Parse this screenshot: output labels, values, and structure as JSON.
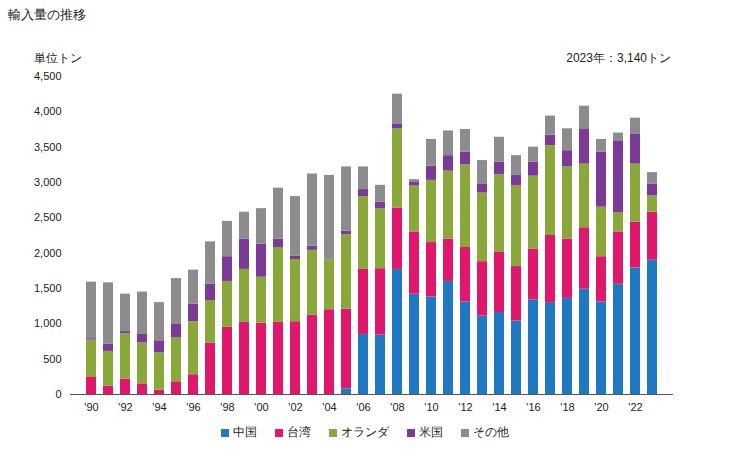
{
  "chart_data": {
    "type": "bar",
    "title": "輸入量の推移",
    "y_label": "単位トン",
    "annotations": [
      "2023年：3,140トン"
    ],
    "stacked": true,
    "grid": false,
    "legend": "bottom",
    "categories": [
      "'90",
      null,
      "'92",
      null,
      "'94",
      null,
      "'96",
      null,
      "'98",
      null,
      "'00",
      null,
      "'02",
      null,
      "'04",
      null,
      "'06",
      null,
      "'08",
      null,
      "'10",
      null,
      "'12",
      null,
      "'14",
      null,
      "'16",
      null,
      "'18",
      null,
      "'20",
      null,
      "'22",
      null
    ],
    "series": [
      {
        "name": "中国",
        "color": "#1f78c1",
        "values": [
          0,
          0,
          0,
          0,
          0,
          0,
          0,
          0,
          0,
          0,
          0,
          0,
          0,
          0,
          0,
          80,
          850,
          840,
          1770,
          1420,
          1380,
          1600,
          1310,
          1110,
          1160,
          1040,
          1340,
          1300,
          1360,
          1490,
          1310,
          1560,
          1790,
          1900
        ]
      },
      {
        "name": "台湾",
        "color": "#e0186c",
        "values": [
          250,
          120,
          220,
          150,
          60,
          180,
          280,
          730,
          950,
          1020,
          1010,
          1020,
          1030,
          1120,
          1200,
          1130,
          920,
          940,
          870,
          880,
          770,
          600,
          770,
          770,
          850,
          770,
          720,
          950,
          840,
          870,
          640,
          740,
          650,
          680
        ]
      },
      {
        "name": "オランダ",
        "color": "#8aa83a",
        "values": [
          520,
          490,
          640,
          580,
          530,
          620,
          750,
          600,
          650,
          750,
          650,
          1060,
          880,
          920,
          700,
          1050,
          1030,
          850,
          1120,
          650,
          880,
          960,
          1170,
          970,
          1100,
          1140,
          1030,
          1270,
          1020,
          900,
          700,
          270,
          820,
          230
        ]
      },
      {
        "name": "米国",
        "color": "#7b3a96",
        "values": [
          20,
          100,
          30,
          120,
          170,
          200,
          250,
          230,
          350,
          430,
          470,
          120,
          50,
          60,
          0,
          50,
          100,
          90,
          70,
          60,
          200,
          220,
          180,
          130,
          180,
          150,
          200,
          150,
          230,
          500,
          780,
          1020,
          420,
          170
        ]
      },
      {
        "name": "その他",
        "color": "#8c8c8c",
        "values": [
          800,
          870,
          530,
          600,
          540,
          640,
          480,
          600,
          500,
          380,
          500,
          720,
          840,
          1020,
          1200,
          910,
          320,
          240,
          420,
          30,
          380,
          350,
          320,
          330,
          350,
          280,
          210,
          270,
          310,
          320,
          180,
          110,
          230,
          160
        ]
      }
    ],
    "ylim": [
      0,
      4500
    ],
    "yticks": [
      0,
      500,
      {
        "value": 1000,
        "label": "1,000"
      },
      {
        "value": 1500,
        "label": "1,500"
      },
      {
        "value": 2000,
        "label": "2,000"
      },
      {
        "value": 2500,
        "label": "2,500"
      },
      {
        "value": 3000,
        "label": "3,000"
      },
      {
        "value": 3500,
        "label": "3,500"
      },
      {
        "value": 4000,
        "label": "4,000"
      },
      {
        "value": 4500,
        "label": "4,500"
      }
    ]
  }
}
